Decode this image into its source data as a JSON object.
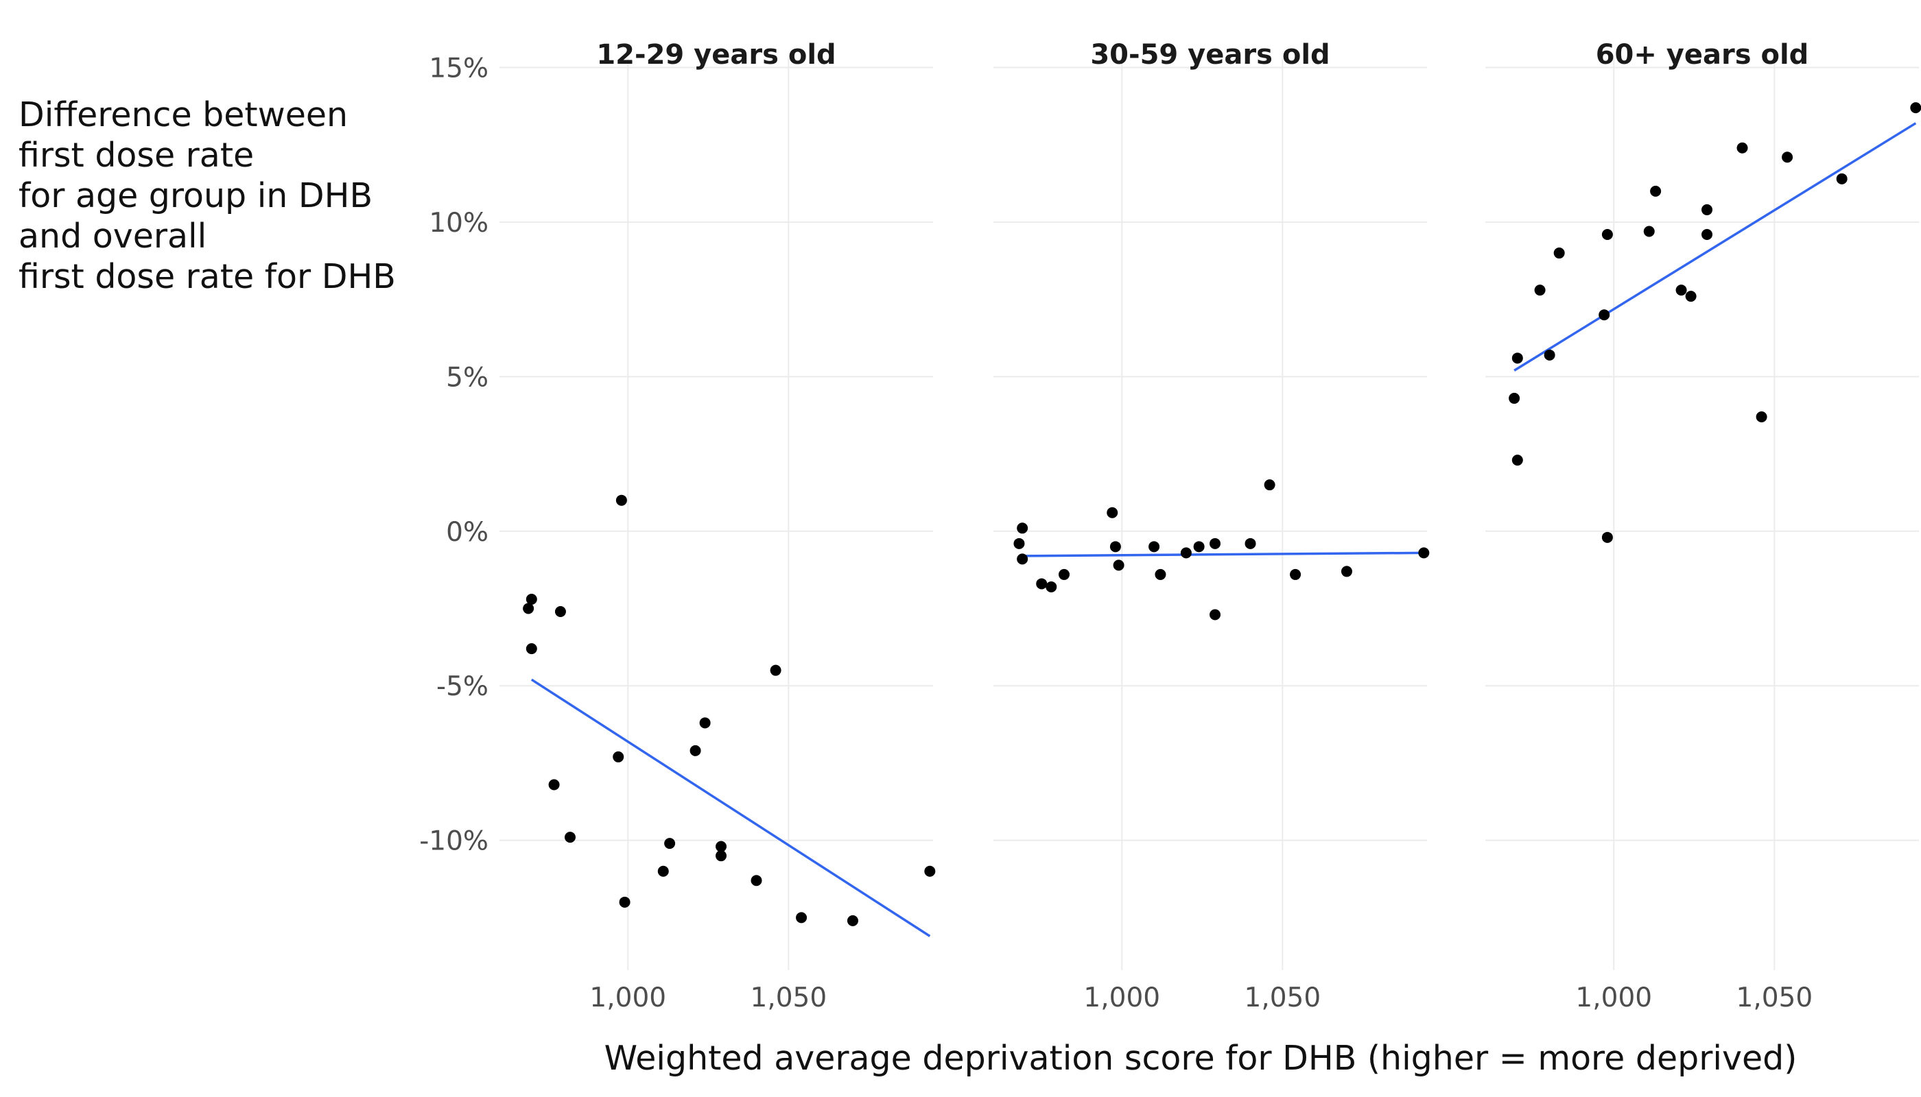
{
  "chart_data": {
    "type": "scatter",
    "ylabel_lines": [
      "Difference between",
      "first dose rate",
      "for age group in DHB",
      "and overall",
      "first dose rate for DHB"
    ],
    "xlabel": "Weighted average deprivation score for DHB (higher = more deprived)",
    "xlim": [
      960,
      1095
    ],
    "ylim": [
      -14.2,
      15.3
    ],
    "x_ticks": [
      1000,
      1050
    ],
    "x_tick_labels": [
      "1,000",
      "1,050"
    ],
    "y_ticks": [
      15,
      10,
      5,
      0,
      -5,
      -10
    ],
    "y_tick_labels": [
      "15%",
      "10%",
      "5%",
      "0%",
      "-5%",
      "-10%"
    ],
    "grid": true,
    "colors": {
      "point": "#000000",
      "trend_line": "#3366ee",
      "grid": "#ebebeb",
      "axis_text": "#4d4d4d"
    },
    "panels": [
      {
        "title": "12-29 years old",
        "points": [
          [
            969,
            -2.5
          ],
          [
            970,
            -2.2
          ],
          [
            970,
            -3.8
          ],
          [
            977,
            -8.2
          ],
          [
            979,
            -2.6
          ],
          [
            982,
            -9.9
          ],
          [
            997,
            -7.3
          ],
          [
            998,
            1.0
          ],
          [
            999,
            -12.0
          ],
          [
            1011,
            -11.0
          ],
          [
            1013,
            -10.1
          ],
          [
            1021,
            -7.1
          ],
          [
            1024,
            -6.2
          ],
          [
            1029,
            -10.2
          ],
          [
            1029,
            -10.5
          ],
          [
            1040,
            -11.3
          ],
          [
            1046,
            -4.5
          ],
          [
            1054,
            -12.5
          ],
          [
            1070,
            -12.6
          ],
          [
            1094,
            -11.0
          ]
        ],
        "trend": [
          [
            970,
            -4.8
          ],
          [
            1094,
            -13.1
          ]
        ]
      },
      {
        "title": "30-59 years old",
        "points": [
          [
            968,
            -0.4
          ],
          [
            969,
            0.1
          ],
          [
            969,
            -0.9
          ],
          [
            975,
            -1.7
          ],
          [
            978,
            -1.8
          ],
          [
            982,
            -1.4
          ],
          [
            997,
            0.6
          ],
          [
            998,
            -0.5
          ],
          [
            999,
            -1.1
          ],
          [
            1010,
            -0.5
          ],
          [
            1012,
            -1.4
          ],
          [
            1020,
            -0.7
          ],
          [
            1024,
            -0.5
          ],
          [
            1029,
            -0.4
          ],
          [
            1029,
            -2.7
          ],
          [
            1040,
            -0.4
          ],
          [
            1046,
            1.5
          ],
          [
            1054,
            -1.4
          ],
          [
            1070,
            -1.3
          ],
          [
            1094,
            -0.7
          ]
        ],
        "trend": [
          [
            969,
            -0.8
          ],
          [
            1094,
            -0.7
          ]
        ]
      },
      {
        "title": "60+ years old",
        "points": [
          [
            969,
            4.3
          ],
          [
            970,
            2.3
          ],
          [
            970,
            5.6
          ],
          [
            977,
            7.8
          ],
          [
            980,
            5.7
          ],
          [
            983,
            9.0
          ],
          [
            997,
            7.0
          ],
          [
            998,
            9.6
          ],
          [
            998,
            -0.2
          ],
          [
            1011,
            9.7
          ],
          [
            1013,
            11.0
          ],
          [
            1021,
            7.8
          ],
          [
            1024,
            7.6
          ],
          [
            1029,
            10.4
          ],
          [
            1029,
            9.6
          ],
          [
            1040,
            12.4
          ],
          [
            1046,
            3.7
          ],
          [
            1054,
            12.1
          ],
          [
            1071,
            11.4
          ],
          [
            1094,
            13.7
          ]
        ],
        "trend": [
          [
            969,
            5.2
          ],
          [
            1094,
            13.2
          ]
        ]
      }
    ]
  }
}
